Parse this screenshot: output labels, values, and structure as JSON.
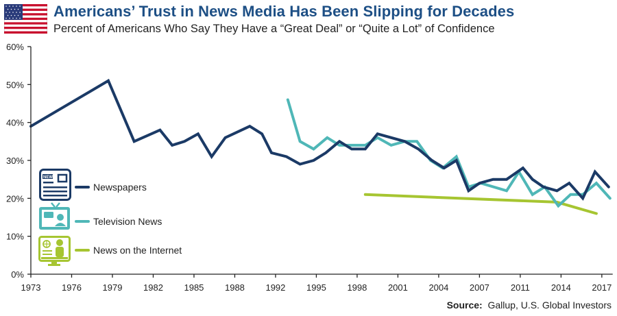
{
  "header": {
    "title": "Americans’ Trust in News Media Has Been Slipping for Decades",
    "subtitle": "Percent of Americans Who Say They Have a “Great Deal” or “Quite a Lot” of Confidence",
    "flag_icon": "us-flag-icon"
  },
  "source": {
    "label": "Source:",
    "text": "Gallup, U.S. Global Investors"
  },
  "colors": {
    "title": "#1d4f85",
    "newspapers": "#1b3a66",
    "television": "#4fb7b7",
    "internet": "#a6c531",
    "axis": "#222222"
  },
  "chart_data": {
    "type": "line",
    "title": "Americans’ Trust in News Media Has Been Slipping for Decades",
    "subtitle": "Percent of Americans Who Say They Have a “Great Deal” or “Quite a Lot” of Confidence",
    "xlabel": "",
    "ylabel": "",
    "x_ticks": [
      "1973",
      "1976",
      "1979",
      "1982",
      "1985",
      "1988",
      "1992",
      "1995",
      "1998",
      "2001",
      "2004",
      "2007",
      "2011",
      "2014",
      "2017"
    ],
    "x_tick_slot_step": 3,
    "xlim_slots": [
      0,
      42.8
    ],
    "yticks": [
      "0%",
      "10%",
      "20%",
      "30%",
      "40%",
      "50%",
      "60%"
    ],
    "ylim": [
      0,
      60
    ],
    "grid": false,
    "legend_position": "left-middle",
    "series": [
      {
        "name": "Newspapers",
        "icon": "newspaper-icon",
        "points": [
          [
            0,
            39
          ],
          [
            5.7,
            51
          ],
          [
            7.6,
            35
          ],
          [
            9.5,
            38
          ],
          [
            10.4,
            34
          ],
          [
            11.3,
            35
          ],
          [
            12.3,
            37
          ],
          [
            13.3,
            31
          ],
          [
            14.3,
            36
          ],
          [
            16.1,
            39
          ],
          [
            17,
            37
          ],
          [
            17.7,
            32
          ],
          [
            18.8,
            31
          ],
          [
            19.8,
            29
          ],
          [
            20.8,
            30
          ],
          [
            21.7,
            32
          ],
          [
            22.7,
            35
          ],
          [
            23.6,
            33
          ],
          [
            24.6,
            33
          ],
          [
            25.5,
            37
          ],
          [
            27.5,
            35
          ],
          [
            28.5,
            33
          ],
          [
            29.5,
            30
          ],
          [
            30.4,
            28
          ],
          [
            31.3,
            30
          ],
          [
            32.2,
            22
          ],
          [
            33,
            24
          ],
          [
            34,
            25
          ],
          [
            35,
            25
          ],
          [
            36.2,
            28
          ],
          [
            36.9,
            25
          ],
          [
            37.7,
            23
          ],
          [
            38.7,
            22
          ],
          [
            39.6,
            24
          ],
          [
            40.6,
            20
          ],
          [
            41.5,
            27
          ],
          [
            42.5,
            23
          ]
        ]
      },
      {
        "name": "Television News",
        "icon": "television-icon",
        "points": [
          [
            18.9,
            46
          ],
          [
            19.8,
            35
          ],
          [
            20.8,
            33
          ],
          [
            21.8,
            36
          ],
          [
            22.7,
            34
          ],
          [
            24.6,
            34
          ],
          [
            25.5,
            36
          ],
          [
            26.5,
            34
          ],
          [
            27.5,
            35
          ],
          [
            28.4,
            35
          ],
          [
            29.4,
            30
          ],
          [
            30.3,
            28
          ],
          [
            31.3,
            31
          ],
          [
            32.2,
            23
          ],
          [
            33.1,
            24
          ],
          [
            35,
            22
          ],
          [
            35.9,
            27
          ],
          [
            36.9,
            21
          ],
          [
            37.8,
            23
          ],
          [
            38.8,
            18
          ],
          [
            39.7,
            21
          ],
          [
            40.6,
            21
          ],
          [
            41.6,
            24
          ],
          [
            42.6,
            20
          ]
        ]
      },
      {
        "name": "News on the Internet",
        "icon": "internet-icon",
        "points": [
          [
            24.6,
            21
          ],
          [
            38.7,
            19
          ],
          [
            41.6,
            16
          ]
        ]
      }
    ]
  }
}
